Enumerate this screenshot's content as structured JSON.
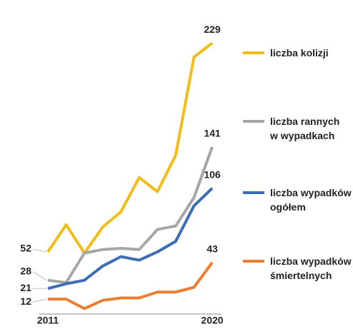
{
  "chart_data": {
    "type": "line",
    "categories": [
      "2011",
      null,
      null,
      null,
      null,
      null,
      null,
      null,
      null,
      "2020"
    ],
    "ylim": [
      0,
      240
    ],
    "series": [
      {
        "name": "liczba kolizji",
        "color": "#f2bd1a",
        "values": [
          52,
          75,
          51,
          73,
          86,
          115,
          103,
          134,
          217,
          229
        ]
      },
      {
        "name": "liczba rannych\nw wypadkach",
        "color": "#a6a6a6",
        "values": [
          28,
          26,
          51,
          54,
          55,
          54,
          71,
          74,
          98,
          141
        ]
      },
      {
        "name": "liczba wypadków\nogółem",
        "color": "#3d6db5",
        "values": [
          21,
          25,
          28,
          40,
          48,
          45,
          52,
          61,
          91,
          106
        ]
      },
      {
        "name": "liczba wypadków\nśmiertelnych",
        "color": "#ec7d31",
        "values": [
          12,
          12,
          4,
          11,
          13,
          13,
          18,
          18,
          22,
          43
        ]
      }
    ]
  }
}
